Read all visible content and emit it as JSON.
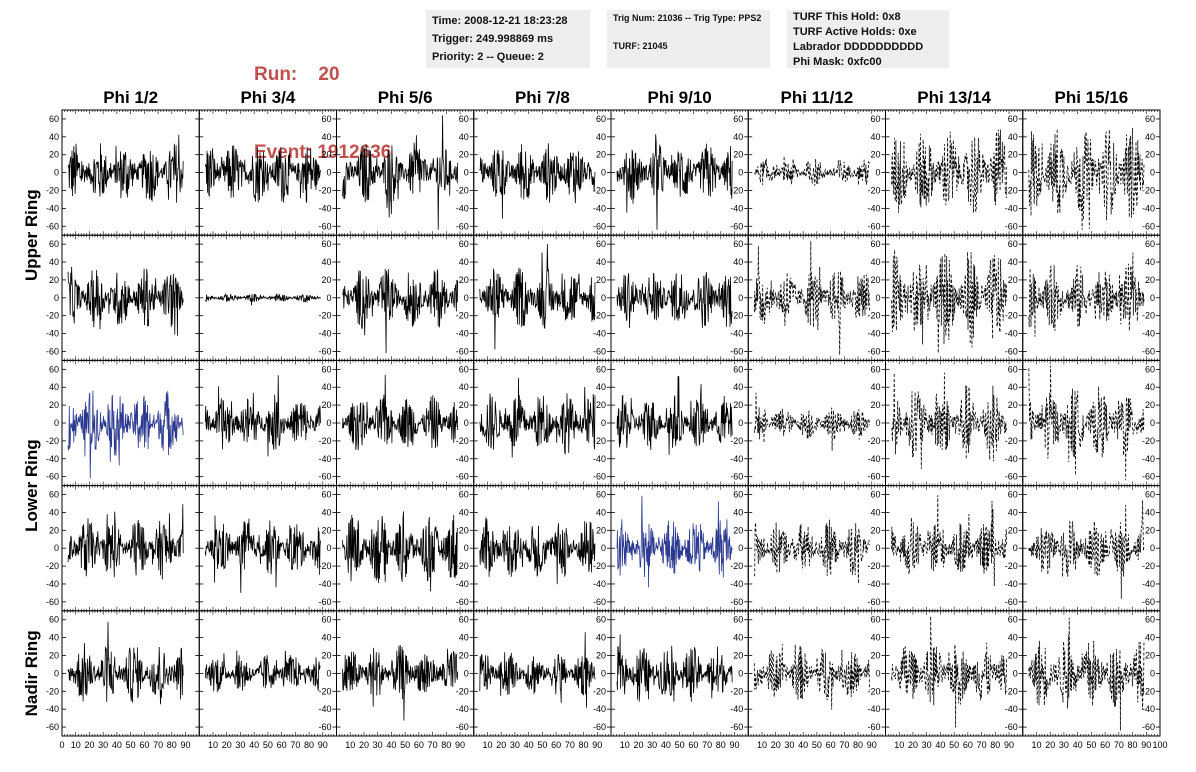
{
  "header": {
    "run_label": "Run:",
    "run_value": "20",
    "event_label": "Event:",
    "event_value": "1912636"
  },
  "info_time": {
    "time": "Time: 2008-12-21 18:23:28",
    "trigger": "Trigger: 249.998869 ms",
    "priority": "Priority: 2 -- Queue: 2"
  },
  "info_trig": {
    "trig": "Trig Num: 21036 -- Trig Type: PPS2",
    "turf": "TURF: 21045"
  },
  "info_turf": {
    "hold": "TURF This Hold: 0x8",
    "active": "TURF Active Holds: 0xe",
    "labrador": "Labrador DDDDDDDDDD",
    "phimask": "Phi Mask: 0xfc00"
  },
  "colors": {
    "header_red": "#c0504d",
    "trace": "#000000",
    "highlight_trace": "#2b3990",
    "panel_bg": "#eeeeee"
  },
  "chart_data": {
    "type": "line",
    "columns": [
      "Phi 1/2",
      "Phi 3/4",
      "Phi 5/6",
      "Phi 7/8",
      "Phi 9/10",
      "Phi 11/12",
      "Phi 13/14",
      "Phi 15/16"
    ],
    "rows": [
      {
        "label": "Upper Ring",
        "panels": 2
      },
      {
        "label": "Lower Ring",
        "panels": 2
      },
      {
        "label": "Nadir Ring",
        "panels": 1
      }
    ],
    "ylim": [
      -70,
      70
    ],
    "y_ticks": [
      -60,
      -40,
      -20,
      0,
      20,
      40,
      60
    ],
    "xlim": [
      0,
      100
    ],
    "x_ticks": [
      0,
      10,
      20,
      30,
      40,
      50,
      60,
      70,
      80,
      90,
      100
    ],
    "grid": false,
    "dashed_columns": [
      5,
      6,
      7
    ],
    "highlighted_panels": [
      [
        2,
        0
      ],
      [
        3,
        4
      ]
    ],
    "panel_amplitudes": [
      [
        22,
        22,
        22,
        22,
        22,
        10,
        32,
        34
      ],
      [
        22,
        3,
        22,
        22,
        22,
        22,
        36,
        24
      ],
      [
        24,
        20,
        20,
        22,
        20,
        12,
        28,
        26
      ],
      [
        22,
        20,
        26,
        22,
        22,
        20,
        22,
        22
      ],
      [
        22,
        14,
        20,
        16,
        20,
        20,
        24,
        26
      ]
    ],
    "samples_per_trace": 260
  }
}
